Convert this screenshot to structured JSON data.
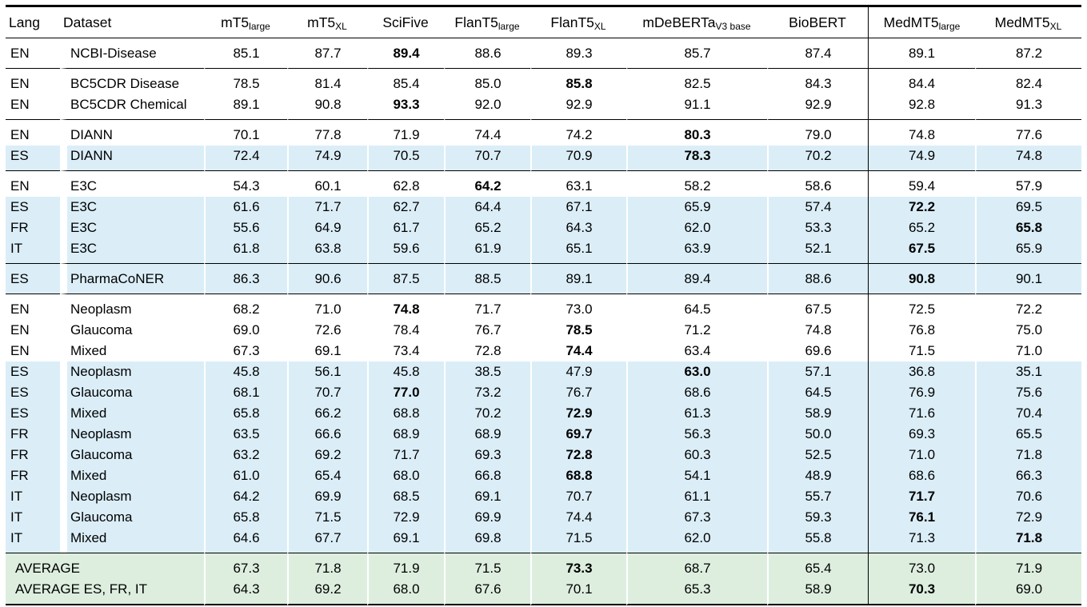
{
  "colors": {
    "row_highlight_blue": "#dbeef8",
    "row_highlight_green": "#ddeede",
    "rule_color": "#000000",
    "background": "#ffffff"
  },
  "table": {
    "columns": [
      {
        "label": "Lang",
        "sub": "",
        "align": "left"
      },
      {
        "label": "Dataset",
        "sub": "",
        "align": "left"
      },
      {
        "label": "mT5",
        "sub": "large",
        "align": "center"
      },
      {
        "label": "mT5",
        "sub": "XL",
        "align": "center"
      },
      {
        "label": "SciFive",
        "sub": "",
        "align": "center"
      },
      {
        "label": "FlanT5",
        "sub": "large",
        "align": "center"
      },
      {
        "label": "FlanT5",
        "sub": "XL",
        "align": "center"
      },
      {
        "label": "mDeBERTa",
        "sub": "V3 base",
        "align": "center"
      },
      {
        "label": "BioBERT",
        "sub": "",
        "align": "center"
      },
      {
        "label": "MedMT5",
        "sub": "large",
        "align": "center",
        "divider_left": true
      },
      {
        "label": "MedMT5",
        "sub": "XL",
        "align": "center"
      }
    ],
    "groups": [
      {
        "rows": [
          {
            "lang": "EN",
            "dataset": "NCBI-Disease",
            "bg": "white",
            "values": [
              "85.1",
              "87.7",
              "89.4",
              "88.6",
              "89.3",
              "85.7",
              "87.4",
              "89.1",
              "87.2"
            ],
            "bold": [
              2
            ]
          }
        ]
      },
      {
        "rows": [
          {
            "lang": "EN",
            "dataset": "BC5CDR Disease",
            "bg": "white",
            "values": [
              "78.5",
              "81.4",
              "85.4",
              "85.0",
              "85.8",
              "82.5",
              "84.3",
              "84.4",
              "82.4"
            ],
            "bold": [
              4
            ]
          },
          {
            "lang": "EN",
            "dataset": "BC5CDR Chemical",
            "bg": "white",
            "values": [
              "89.1",
              "90.8",
              "93.3",
              "92.0",
              "92.9",
              "91.1",
              "92.9",
              "92.8",
              "91.3"
            ],
            "bold": [
              2
            ]
          }
        ]
      },
      {
        "rows": [
          {
            "lang": "EN",
            "dataset": "DIANN",
            "bg": "white",
            "values": [
              "70.1",
              "77.8",
              "71.9",
              "74.4",
              "74.2",
              "80.3",
              "79.0",
              "74.8",
              "77.6"
            ],
            "bold": [
              5
            ]
          },
          {
            "lang": "ES",
            "dataset": "DIANN",
            "bg": "blue",
            "values": [
              "72.4",
              "74.9",
              "70.5",
              "70.7",
              "70.9",
              "78.3",
              "70.2",
              "74.9",
              "74.8"
            ],
            "bold": [
              5
            ]
          }
        ]
      },
      {
        "rows": [
          {
            "lang": "EN",
            "dataset": "E3C",
            "bg": "white",
            "values": [
              "54.3",
              "60.1",
              "62.8",
              "64.2",
              "63.1",
              "58.2",
              "58.6",
              "59.4",
              "57.9"
            ],
            "bold": [
              3
            ]
          },
          {
            "lang": "ES",
            "dataset": "E3C",
            "bg": "blue",
            "values": [
              "61.6",
              "71.7",
              "62.7",
              "64.4",
              "67.1",
              "65.9",
              "57.4",
              "72.2",
              "69.5"
            ],
            "bold": [
              7
            ]
          },
          {
            "lang": "FR",
            "dataset": "E3C",
            "bg": "blue",
            "values": [
              "55.6",
              "64.9",
              "61.7",
              "65.2",
              "64.3",
              "62.0",
              "53.3",
              "65.2",
              "65.8"
            ],
            "bold": [
              8
            ]
          },
          {
            "lang": "IT",
            "dataset": "E3C",
            "bg": "blue",
            "values": [
              "61.8",
              "63.8",
              "59.6",
              "61.9",
              "65.1",
              "63.9",
              "52.1",
              "67.5",
              "65.9"
            ],
            "bold": [
              7
            ]
          }
        ]
      },
      {
        "rows": [
          {
            "lang": "ES",
            "dataset": "PharmaCoNER",
            "bg": "blue",
            "values": [
              "86.3",
              "90.6",
              "87.5",
              "88.5",
              "89.1",
              "89.4",
              "88.6",
              "90.8",
              "90.1"
            ],
            "bold": [
              7
            ]
          }
        ]
      },
      {
        "rows": [
          {
            "lang": "EN",
            "dataset": "Neoplasm",
            "bg": "white",
            "values": [
              "68.2",
              "71.0",
              "74.8",
              "71.7",
              "73.0",
              "64.5",
              "67.5",
              "72.5",
              "72.2"
            ],
            "bold": [
              2
            ]
          },
          {
            "lang": "EN",
            "dataset": "Glaucoma",
            "bg": "white",
            "values": [
              "69.0",
              "72.6",
              "78.4",
              "76.7",
              "78.5",
              "71.2",
              "74.8",
              "76.8",
              "75.0"
            ],
            "bold": [
              4
            ]
          },
          {
            "lang": "EN",
            "dataset": "Mixed",
            "bg": "white",
            "values": [
              "67.3",
              "69.1",
              "73.4",
              "72.8",
              "74.4",
              "63.4",
              "69.6",
              "71.5",
              "71.0"
            ],
            "bold": [
              4
            ]
          },
          {
            "lang": "ES",
            "dataset": "Neoplasm",
            "bg": "blue",
            "values": [
              "45.8",
              "56.1",
              "45.8",
              "38.5",
              "47.9",
              "63.0",
              "57.1",
              "36.8",
              "35.1"
            ],
            "bold": [
              5
            ]
          },
          {
            "lang": "ES",
            "dataset": "Glaucoma",
            "bg": "blue",
            "values": [
              "68.1",
              "70.7",
              "77.0",
              "73.2",
              "76.7",
              "68.6",
              "64.5",
              "76.9",
              "75.6"
            ],
            "bold": [
              2
            ]
          },
          {
            "lang": "ES",
            "dataset": "Mixed",
            "bg": "blue",
            "values": [
              "65.8",
              "66.2",
              "68.8",
              "70.2",
              "72.9",
              "61.3",
              "58.9",
              "71.6",
              "70.4"
            ],
            "bold": [
              4
            ]
          },
          {
            "lang": "FR",
            "dataset": "Neoplasm",
            "bg": "blue",
            "values": [
              "63.5",
              "66.6",
              "68.9",
              "68.9",
              "69.7",
              "56.3",
              "50.0",
              "69.3",
              "65.5"
            ],
            "bold": [
              4
            ]
          },
          {
            "lang": "FR",
            "dataset": "Glaucoma",
            "bg": "blue",
            "values": [
              "63.2",
              "69.2",
              "71.7",
              "69.3",
              "72.8",
              "60.3",
              "52.5",
              "71.0",
              "71.8"
            ],
            "bold": [
              4
            ]
          },
          {
            "lang": "FR",
            "dataset": "Mixed",
            "bg": "blue",
            "values": [
              "61.0",
              "65.4",
              "68.0",
              "66.8",
              "68.8",
              "54.1",
              "48.9",
              "68.6",
              "66.3"
            ],
            "bold": [
              4
            ]
          },
          {
            "lang": "IT",
            "dataset": "Neoplasm",
            "bg": "blue",
            "values": [
              "64.2",
              "69.9",
              "68.5",
              "69.1",
              "70.7",
              "61.1",
              "55.7",
              "71.7",
              "70.6"
            ],
            "bold": [
              7
            ]
          },
          {
            "lang": "IT",
            "dataset": "Glaucoma",
            "bg": "blue",
            "values": [
              "65.8",
              "71.5",
              "72.9",
              "69.9",
              "74.4",
              "67.3",
              "59.3",
              "76.1",
              "72.9"
            ],
            "bold": [
              7
            ]
          },
          {
            "lang": "IT",
            "dataset": "Mixed",
            "bg": "blue",
            "values": [
              "64.6",
              "67.7",
              "69.1",
              "69.8",
              "71.5",
              "62.0",
              "55.8",
              "71.3",
              "71.8"
            ],
            "bold": [
              8
            ]
          }
        ]
      },
      {
        "rows": [
          {
            "lang": null,
            "dataset": "AVERAGE",
            "bg": "green",
            "values": [
              "67.3",
              "71.8",
              "71.9",
              "71.5",
              "73.3",
              "68.7",
              "65.4",
              "73.0",
              "71.9"
            ],
            "bold": [
              4
            ]
          },
          {
            "lang": null,
            "dataset": "AVERAGE ES, FR, IT",
            "bg": "green",
            "values": [
              "64.3",
              "69.2",
              "68.0",
              "67.6",
              "70.1",
              "65.3",
              "58.9",
              "70.3",
              "69.0"
            ],
            "bold": [
              7
            ]
          }
        ]
      }
    ]
  }
}
